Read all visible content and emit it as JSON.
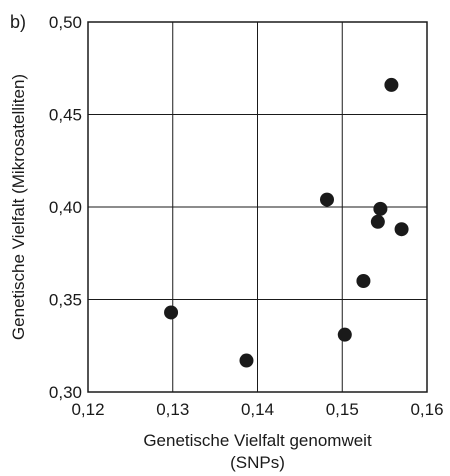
{
  "panel_label": "b)",
  "chart_data": {
    "type": "scatter",
    "title": "",
    "xlabel_line1": "Genetische Vielfalt genomweit",
    "xlabel_line2": "(SNPs)",
    "ylabel": "Genetische Vielfalt (Mikrosatelliten)",
    "xlim": [
      0.12,
      0.16
    ],
    "ylim": [
      0.3,
      0.5
    ],
    "x_ticks": [
      0.12,
      0.13,
      0.14,
      0.15,
      0.16
    ],
    "y_ticks": [
      0.3,
      0.35,
      0.4,
      0.45,
      0.5
    ],
    "x_tick_labels": [
      "0,12",
      "0,13",
      "0,14",
      "0,15",
      "0,16"
    ],
    "y_tick_labels": [
      "0,30",
      "0,35",
      "0,40",
      "0,45",
      "0,50"
    ],
    "grid": true,
    "point_color": "#1a1a1a",
    "points": [
      {
        "x": 0.1298,
        "y": 0.343
      },
      {
        "x": 0.1387,
        "y": 0.317
      },
      {
        "x": 0.1482,
        "y": 0.404
      },
      {
        "x": 0.1503,
        "y": 0.331
      },
      {
        "x": 0.1525,
        "y": 0.36
      },
      {
        "x": 0.1542,
        "y": 0.392
      },
      {
        "x": 0.1545,
        "y": 0.399
      },
      {
        "x": 0.1558,
        "y": 0.466
      },
      {
        "x": 0.157,
        "y": 0.388
      }
    ]
  }
}
